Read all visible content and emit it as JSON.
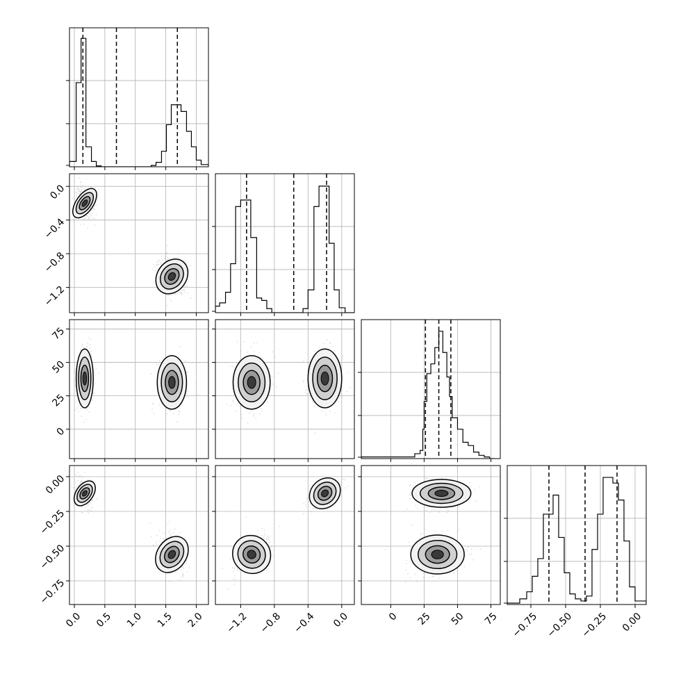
{
  "chart_data": {
    "type": "corner",
    "grid": true,
    "parameters": [
      {
        "range": [
          -0.08,
          2.2
        ],
        "ticks": [
          0.0,
          0.5,
          1.0,
          1.5,
          2.0
        ],
        "tick_labels": [
          "0.0",
          "0.5",
          "1.0",
          "1.5",
          "2.0"
        ],
        "quantiles": [
          0.14,
          0.69,
          1.69
        ]
      },
      {
        "range": [
          -1.5,
          0.15
        ],
        "ticks": [
          -1.2,
          -0.8,
          -0.4,
          0.0
        ],
        "tick_labels": [
          "−1.2",
          "−0.8",
          "−0.4",
          "0.0"
        ],
        "quantiles": [
          -1.13,
          -0.57,
          -0.18
        ]
      },
      {
        "range": [
          -22,
          82
        ],
        "ticks": [
          0,
          25,
          50,
          75
        ],
        "tick_labels": [
          "0",
          "25",
          "50",
          "75"
        ],
        "quantiles": [
          26,
          36,
          45
        ]
      },
      {
        "range": [
          -0.92,
          0.08
        ],
        "ticks": [
          -0.75,
          -0.5,
          -0.25,
          0.0
        ],
        "tick_labels": [
          "−0.75",
          "−0.50",
          "−0.25",
          "0.00"
        ],
        "quantiles": [
          -0.62,
          -0.36,
          -0.13
        ]
      }
    ],
    "diagonal_histograms": [
      {
        "param": 0,
        "bin_edges": [
          -0.08,
          0.03,
          0.11,
          0.19,
          0.28,
          0.36,
          0.44,
          0.52,
          0.61,
          0.69,
          0.77,
          0.85,
          0.93,
          1.02,
          1.1,
          1.18,
          1.26,
          1.34,
          1.43,
          1.51,
          1.59,
          1.67,
          1.75,
          1.84,
          1.92,
          2.0,
          2.08,
          2.2
        ],
        "counts": [
          12,
          190,
          290,
          45,
          12,
          2,
          0,
          0,
          0,
          0,
          0,
          0,
          0,
          0,
          0,
          0,
          3,
          10,
          35,
          95,
          140,
          140,
          125,
          80,
          45,
          15,
          5
        ]
      },
      {
        "param": 1,
        "bin_edges": [
          -1.5,
          -1.45,
          -1.38,
          -1.32,
          -1.26,
          -1.2,
          -1.14,
          -1.08,
          -1.01,
          -0.95,
          -0.89,
          -0.83,
          -0.77,
          -0.71,
          -0.64,
          -0.58,
          -0.52,
          -0.46,
          -0.4,
          -0.33,
          -0.27,
          -0.21,
          -0.15,
          -0.09,
          -0.03,
          0.04,
          0.15
        ],
        "counts": [
          8,
          12,
          25,
          60,
          130,
          138,
          138,
          92,
          18,
          15,
          5,
          0,
          0,
          0,
          0,
          0,
          0,
          5,
          28,
          130,
          155,
          155,
          85,
          28,
          6,
          0
        ]
      },
      {
        "param": 2,
        "bin_edges": [
          -22,
          18,
          22,
          24,
          25,
          27,
          30,
          33,
          36,
          39,
          42,
          44,
          46,
          50,
          54,
          58,
          62,
          66,
          70,
          74,
          78
        ],
        "counts": [
          1,
          3,
          5,
          18,
          35,
          52,
          58,
          68,
          78,
          65,
          50,
          38,
          25,
          18,
          10,
          8,
          4,
          2,
          1,
          0
        ]
      },
      {
        "param": 3,
        "bin_edges": [
          -0.92,
          -0.83,
          -0.78,
          -0.74,
          -0.7,
          -0.66,
          -0.62,
          -0.59,
          -0.55,
          -0.51,
          -0.47,
          -0.43,
          -0.39,
          -0.35,
          -0.31,
          -0.27,
          -0.23,
          -0.2,
          -0.16,
          -0.12,
          -0.08,
          -0.04,
          0.0,
          0.08
        ],
        "counts": [
          2,
          8,
          18,
          40,
          65,
          128,
          128,
          155,
          95,
          45,
          15,
          8,
          5,
          12,
          78,
          128,
          180,
          180,
          172,
          148,
          90,
          25,
          5
        ]
      }
    ],
    "mode_centers": [
      {
        "param0": 0.17,
        "param1": -0.2,
        "param2": 38,
        "param3": -0.12
      },
      {
        "param0": 1.6,
        "param1": -1.07,
        "param2": 35,
        "param3": -0.56
      }
    ]
  }
}
